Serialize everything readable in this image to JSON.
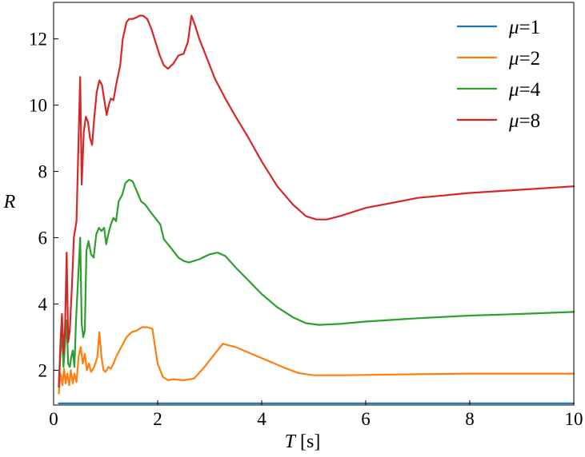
{
  "chart_data": {
    "type": "line",
    "title": "",
    "xlabel": "T [s]",
    "xlabel_parts": {
      "symbol": "T",
      "unit": " [s]"
    },
    "ylabel": "R",
    "xlim": [
      0,
      10
    ],
    "ylim": [
      0.95,
      13.1
    ],
    "x_ticks": [
      0,
      2,
      4,
      6,
      8,
      10
    ],
    "y_ticks": [
      2,
      4,
      6,
      8,
      10,
      12
    ],
    "grid": false,
    "legend_position": "top-right",
    "series": [
      {
        "name": "μ=1",
        "legend_parts": {
          "symbol": "μ",
          "rest": "=1"
        },
        "color": "#1f77b4",
        "points": [
          [
            0.1,
            1.0
          ],
          [
            10.0,
            1.0
          ]
        ]
      },
      {
        "name": "μ=2",
        "legend_parts": {
          "symbol": "μ",
          "rest": "=2"
        },
        "color": "#ff7f0e",
        "points": [
          [
            0.1,
            1.3
          ],
          [
            0.13,
            1.9
          ],
          [
            0.17,
            1.55
          ],
          [
            0.2,
            2.05
          ],
          [
            0.23,
            1.6
          ],
          [
            0.26,
            1.9
          ],
          [
            0.3,
            1.55
          ],
          [
            0.33,
            2.0
          ],
          [
            0.37,
            1.6
          ],
          [
            0.4,
            1.9
          ],
          [
            0.44,
            1.65
          ],
          [
            0.48,
            2.4
          ],
          [
            0.52,
            2.7
          ],
          [
            0.56,
            2.2
          ],
          [
            0.6,
            2.5
          ],
          [
            0.64,
            2.0
          ],
          [
            0.68,
            2.2
          ],
          [
            0.72,
            1.95
          ],
          [
            0.78,
            2.1
          ],
          [
            0.84,
            2.4
          ],
          [
            0.88,
            3.15
          ],
          [
            0.92,
            2.4
          ],
          [
            0.96,
            2.0
          ],
          [
            1.0,
            1.95
          ],
          [
            1.05,
            2.1
          ],
          [
            1.1,
            2.05
          ],
          [
            1.15,
            2.2
          ],
          [
            1.2,
            2.4
          ],
          [
            1.3,
            2.7
          ],
          [
            1.4,
            3.0
          ],
          [
            1.5,
            3.15
          ],
          [
            1.6,
            3.2
          ],
          [
            1.7,
            3.3
          ],
          [
            1.8,
            3.3
          ],
          [
            1.9,
            3.25
          ],
          [
            1.95,
            2.7
          ],
          [
            2.0,
            2.2
          ],
          [
            2.1,
            1.8
          ],
          [
            2.2,
            1.7
          ],
          [
            2.3,
            1.73
          ],
          [
            2.5,
            1.7
          ],
          [
            2.7,
            1.75
          ],
          [
            2.9,
            2.1
          ],
          [
            3.1,
            2.5
          ],
          [
            3.25,
            2.8
          ],
          [
            3.5,
            2.7
          ],
          [
            3.8,
            2.5
          ],
          [
            4.1,
            2.3
          ],
          [
            4.4,
            2.1
          ],
          [
            4.7,
            1.92
          ],
          [
            5.0,
            1.85
          ],
          [
            5.5,
            1.85
          ],
          [
            6.0,
            1.86
          ],
          [
            7.0,
            1.88
          ],
          [
            8.0,
            1.9
          ],
          [
            9.0,
            1.9
          ],
          [
            10.0,
            1.9
          ]
        ]
      },
      {
        "name": "μ=4",
        "legend_parts": {
          "symbol": "μ",
          "rest": "=4"
        },
        "color": "#2ca02c",
        "points": [
          [
            0.1,
            1.5
          ],
          [
            0.13,
            2.5
          ],
          [
            0.16,
            3.2
          ],
          [
            0.19,
            2.1
          ],
          [
            0.22,
            2.8
          ],
          [
            0.25,
            3.5
          ],
          [
            0.28,
            2.2
          ],
          [
            0.31,
            2.1
          ],
          [
            0.34,
            2.4
          ],
          [
            0.37,
            2.6
          ],
          [
            0.4,
            2.1
          ],
          [
            0.43,
            3.5
          ],
          [
            0.47,
            4.7
          ],
          [
            0.51,
            6.0
          ],
          [
            0.54,
            3.4
          ],
          [
            0.57,
            3.0
          ],
          [
            0.6,
            3.2
          ],
          [
            0.63,
            5.6
          ],
          [
            0.67,
            5.9
          ],
          [
            0.72,
            5.5
          ],
          [
            0.77,
            5.4
          ],
          [
            0.82,
            6.1
          ],
          [
            0.87,
            6.3
          ],
          [
            0.92,
            6.2
          ],
          [
            0.97,
            6.3
          ],
          [
            1.01,
            5.8
          ],
          [
            1.05,
            6.1
          ],
          [
            1.1,
            6.4
          ],
          [
            1.15,
            6.6
          ],
          [
            1.2,
            6.5
          ],
          [
            1.25,
            7.1
          ],
          [
            1.32,
            7.3
          ],
          [
            1.38,
            7.65
          ],
          [
            1.45,
            7.75
          ],
          [
            1.52,
            7.7
          ],
          [
            1.6,
            7.4
          ],
          [
            1.68,
            7.1
          ],
          [
            1.76,
            7.0
          ],
          [
            1.85,
            6.8
          ],
          [
            1.95,
            6.6
          ],
          [
            2.05,
            6.4
          ],
          [
            2.12,
            5.95
          ],
          [
            2.2,
            5.8
          ],
          [
            2.3,
            5.6
          ],
          [
            2.4,
            5.4
          ],
          [
            2.5,
            5.3
          ],
          [
            2.6,
            5.25
          ],
          [
            2.8,
            5.35
          ],
          [
            3.0,
            5.5
          ],
          [
            3.15,
            5.55
          ],
          [
            3.3,
            5.45
          ],
          [
            3.5,
            5.1
          ],
          [
            3.75,
            4.7
          ],
          [
            4.0,
            4.3
          ],
          [
            4.3,
            3.9
          ],
          [
            4.6,
            3.6
          ],
          [
            4.85,
            3.42
          ],
          [
            5.1,
            3.37
          ],
          [
            5.5,
            3.4
          ],
          [
            6.0,
            3.47
          ],
          [
            7.0,
            3.57
          ],
          [
            8.0,
            3.65
          ],
          [
            9.0,
            3.7
          ],
          [
            10.0,
            3.76
          ]
        ]
      },
      {
        "name": "μ=8",
        "legend_parts": {
          "symbol": "μ",
          "rest": "=8"
        },
        "color": "#d62728",
        "points": [
          [
            0.1,
            1.5
          ],
          [
            0.13,
            2.8
          ],
          [
            0.16,
            3.7
          ],
          [
            0.19,
            2.5
          ],
          [
            0.22,
            3.3
          ],
          [
            0.25,
            5.55
          ],
          [
            0.28,
            2.85
          ],
          [
            0.31,
            3.2
          ],
          [
            0.35,
            4.5
          ],
          [
            0.39,
            6.0
          ],
          [
            0.44,
            6.5
          ],
          [
            0.48,
            9.0
          ],
          [
            0.51,
            10.85
          ],
          [
            0.54,
            7.6
          ],
          [
            0.58,
            9.2
          ],
          [
            0.62,
            9.65
          ],
          [
            0.66,
            9.5
          ],
          [
            0.7,
            9.0
          ],
          [
            0.74,
            8.8
          ],
          [
            0.78,
            9.6
          ],
          [
            0.83,
            10.4
          ],
          [
            0.88,
            10.75
          ],
          [
            0.93,
            10.6
          ],
          [
            0.98,
            10.1
          ],
          [
            1.02,
            9.7
          ],
          [
            1.06,
            10.0
          ],
          [
            1.1,
            10.2
          ],
          [
            1.15,
            10.15
          ],
          [
            1.2,
            10.6
          ],
          [
            1.28,
            11.2
          ],
          [
            1.33,
            12.0
          ],
          [
            1.4,
            12.5
          ],
          [
            1.45,
            12.6
          ],
          [
            1.52,
            12.6
          ],
          [
            1.6,
            12.65
          ],
          [
            1.65,
            12.7
          ],
          [
            1.72,
            12.7
          ],
          [
            1.8,
            12.6
          ],
          [
            1.88,
            12.3
          ],
          [
            1.96,
            11.9
          ],
          [
            2.04,
            11.5
          ],
          [
            2.12,
            11.2
          ],
          [
            2.2,
            11.1
          ],
          [
            2.3,
            11.25
          ],
          [
            2.4,
            11.5
          ],
          [
            2.5,
            11.55
          ],
          [
            2.58,
            11.9
          ],
          [
            2.65,
            12.7
          ],
          [
            2.72,
            12.4
          ],
          [
            2.8,
            12.0
          ],
          [
            2.95,
            11.4
          ],
          [
            3.1,
            10.8
          ],
          [
            3.3,
            10.2
          ],
          [
            3.5,
            9.65
          ],
          [
            3.75,
            9.0
          ],
          [
            4.0,
            8.3
          ],
          [
            4.3,
            7.55
          ],
          [
            4.6,
            7.0
          ],
          [
            4.85,
            6.65
          ],
          [
            5.05,
            6.55
          ],
          [
            5.25,
            6.55
          ],
          [
            5.5,
            6.65
          ],
          [
            6.0,
            6.9
          ],
          [
            6.5,
            7.05
          ],
          [
            7.0,
            7.2
          ],
          [
            8.0,
            7.35
          ],
          [
            9.0,
            7.45
          ],
          [
            10.0,
            7.55
          ]
        ]
      }
    ]
  }
}
